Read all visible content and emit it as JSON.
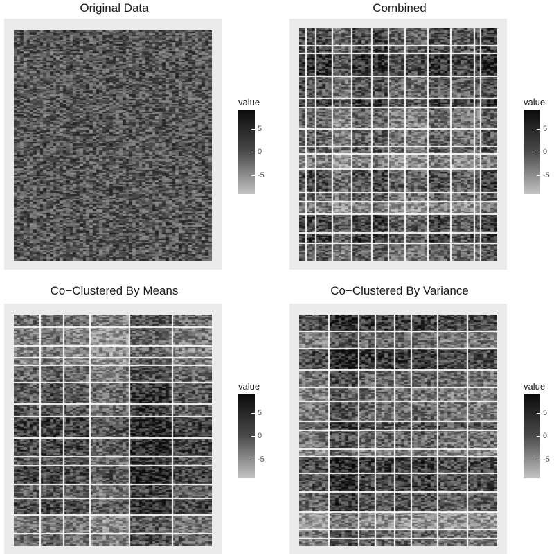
{
  "chart_data": [
    {
      "type": "heatmap",
      "title": "Original Data",
      "legend": {
        "title": "value",
        "ticks": [
          5,
          0,
          -5
        ],
        "range": [
          -9,
          9
        ],
        "position": "right"
      },
      "grid": true,
      "row_breaks": 0,
      "col_breaks": 0
    },
    {
      "type": "heatmap",
      "title": "Combined",
      "legend": {
        "title": "value",
        "ticks": [
          5,
          0,
          -5
        ],
        "range": [
          -9,
          9
        ],
        "position": "right"
      },
      "grid": true,
      "row_clusters": 15,
      "col_clusters": 12
    },
    {
      "type": "heatmap",
      "title": "Co−Clustered By Means",
      "legend": {
        "title": "value",
        "ticks": [
          5,
          0,
          -5
        ],
        "range": [
          -9,
          9
        ],
        "position": "right"
      },
      "grid": true,
      "row_clusters": 15,
      "col_clusters": 6
    },
    {
      "type": "heatmap",
      "title": "Co−Clustered By Variance",
      "legend": {
        "title": "value",
        "ticks": [
          5,
          0,
          -5
        ],
        "range": [
          -9,
          9
        ],
        "position": "right"
      },
      "grid": true,
      "row_clusters": 15,
      "col_clusters": 8
    }
  ]
}
